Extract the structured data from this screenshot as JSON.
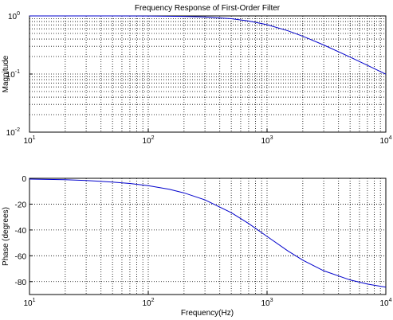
{
  "chart_data": [
    {
      "type": "line",
      "title": "Frequency Response of First-Order Filter",
      "xlabel": "",
      "ylabel": "Magnitude",
      "xscale": "log",
      "yscale": "log",
      "xlim": [
        10,
        10000
      ],
      "ylim": [
        0.01,
        1
      ],
      "grid": true,
      "x_ticks": [
        {
          "base": "10",
          "exp": "1",
          "value": 10
        },
        {
          "base": "10",
          "exp": "2",
          "value": 100
        },
        {
          "base": "10",
          "exp": "3",
          "value": 1000
        },
        {
          "base": "10",
          "exp": "4",
          "value": 10000
        }
      ],
      "y_ticks": [
        {
          "base": "10",
          "exp": "-2",
          "value": 0.01
        },
        {
          "base": "10",
          "exp": "-1",
          "value": 0.1
        },
        {
          "base": "10",
          "exp": "0",
          "value": 1
        }
      ],
      "series": [
        {
          "color": "#0000cc",
          "x": [
            10,
            20,
            50,
            100,
            200,
            300,
            500,
            700,
            1000,
            1500,
            2000,
            3000,
            5000,
            7000,
            10000
          ],
          "y": [
            1.0,
            0.9998,
            0.9988,
            0.995,
            0.981,
            0.958,
            0.894,
            0.819,
            0.707,
            0.555,
            0.447,
            0.316,
            0.196,
            0.141,
            0.0995
          ]
        }
      ]
    },
    {
      "type": "line",
      "title": "",
      "xlabel": "Frequency(Hz)",
      "ylabel": "Phase (degrees)",
      "xscale": "log",
      "yscale": "linear",
      "xlim": [
        10,
        10000
      ],
      "ylim": [
        -90,
        0
      ],
      "grid": true,
      "x_ticks": [
        {
          "base": "10",
          "exp": "1",
          "value": 10
        },
        {
          "base": "10",
          "exp": "2",
          "value": 100
        },
        {
          "base": "10",
          "exp": "3",
          "value": 1000
        },
        {
          "base": "10",
          "exp": "4",
          "value": 10000
        }
      ],
      "y_ticks": [
        {
          "label": "0",
          "value": 0
        },
        {
          "label": "-20",
          "value": -20
        },
        {
          "label": "-40",
          "value": -40
        },
        {
          "label": "-60",
          "value": -60
        },
        {
          "label": "-80",
          "value": -80
        }
      ],
      "series": [
        {
          "color": "#0000cc",
          "x": [
            10,
            20,
            30,
            50,
            70,
            100,
            150,
            200,
            300,
            500,
            700,
            1000,
            1500,
            2000,
            3000,
            5000,
            7000,
            10000
          ],
          "y": [
            -0.6,
            -1.1,
            -1.7,
            -2.9,
            -4.0,
            -5.7,
            -8.5,
            -11.3,
            -16.7,
            -26.6,
            -35.0,
            -45.0,
            -56.3,
            -63.4,
            -71.6,
            -78.7,
            -81.9,
            -84.3
          ]
        }
      ]
    }
  ]
}
